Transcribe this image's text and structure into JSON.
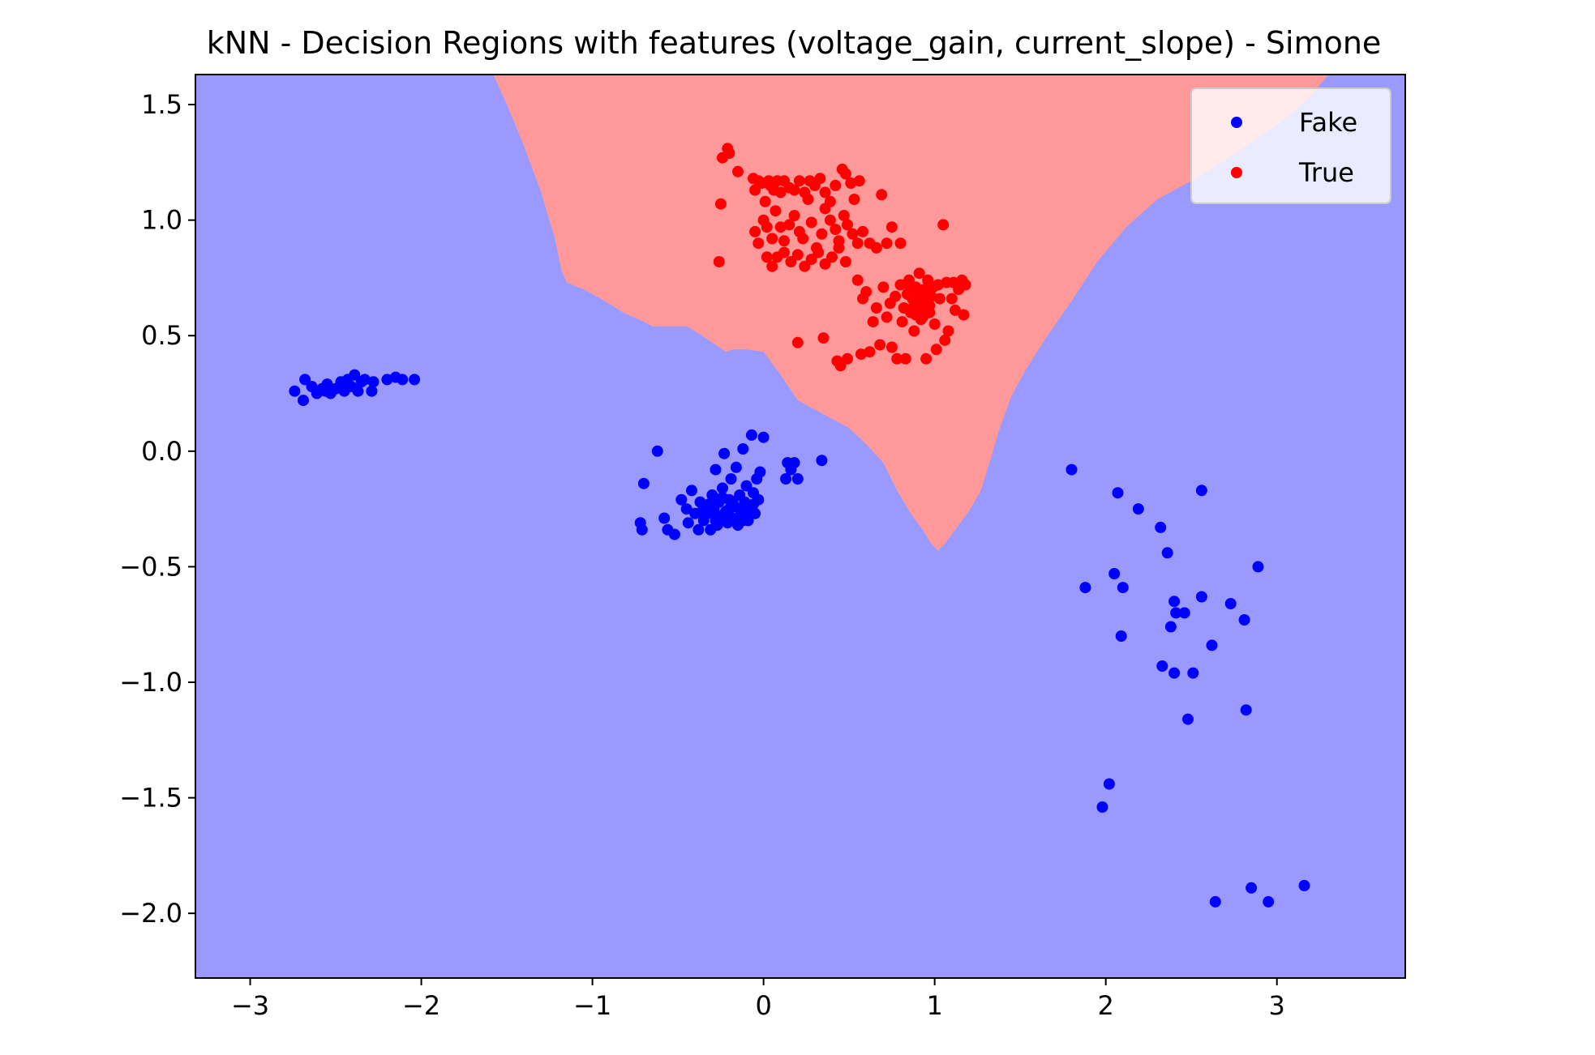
{
  "chart_data": {
    "type": "scatter",
    "title": "kNN - Decision Regions with features (voltage_gain, current_slope) - Simone",
    "xlabel": "",
    "ylabel": "",
    "xlim": [
      -3.32,
      3.75
    ],
    "ylim": [
      -2.28,
      1.63
    ],
    "xticks": [
      -3,
      -2,
      -1,
      0,
      1,
      2,
      3
    ],
    "yticks": [
      1.5,
      1.0,
      0.5,
      0.0,
      -0.5,
      -1.0,
      -1.5,
      -2.0
    ],
    "xtick_labels": [
      "−3",
      "−2",
      "−1",
      "0",
      "1",
      "2",
      "3"
    ],
    "ytick_labels": [
      "1.5",
      "1.0",
      "0.5",
      "0.0",
      "−0.5",
      "−1.0",
      "−1.5",
      "−2.0"
    ],
    "background_region": {
      "label": "Fake",
      "color": "#9999ff"
    },
    "decision_region_true": {
      "label": "True",
      "color": "#ff9999",
      "boundary": [
        [
          -1.58,
          1.63
        ],
        [
          -1.5,
          1.5
        ],
        [
          -1.4,
          1.32
        ],
        [
          -1.3,
          1.12
        ],
        [
          -1.22,
          0.92
        ],
        [
          -1.18,
          0.78
        ],
        [
          -1.15,
          0.73
        ],
        [
          -1.05,
          0.7
        ],
        [
          -0.95,
          0.66
        ],
        [
          -0.82,
          0.6
        ],
        [
          -0.7,
          0.56
        ],
        [
          -0.65,
          0.54
        ],
        [
          -0.45,
          0.54
        ],
        [
          -0.38,
          0.51
        ],
        [
          -0.3,
          0.47
        ],
        [
          -0.22,
          0.43
        ],
        [
          -0.18,
          0.44
        ],
        [
          -0.1,
          0.44
        ],
        [
          0.0,
          0.43
        ],
        [
          0.1,
          0.33
        ],
        [
          0.2,
          0.22
        ],
        [
          0.3,
          0.18
        ],
        [
          0.4,
          0.14
        ],
        [
          0.5,
          0.1
        ],
        [
          0.6,
          0.03
        ],
        [
          0.7,
          -0.05
        ],
        [
          0.78,
          -0.17
        ],
        [
          0.86,
          -0.27
        ],
        [
          0.93,
          -0.34
        ],
        [
          0.98,
          -0.4
        ],
        [
          1.02,
          -0.43
        ],
        [
          1.06,
          -0.4
        ],
        [
          1.12,
          -0.34
        ],
        [
          1.2,
          -0.26
        ],
        [
          1.27,
          -0.17
        ],
        [
          1.32,
          -0.05
        ],
        [
          1.38,
          0.1
        ],
        [
          1.45,
          0.24
        ],
        [
          1.53,
          0.35
        ],
        [
          1.65,
          0.49
        ],
        [
          1.8,
          0.65
        ],
        [
          1.95,
          0.82
        ],
        [
          2.12,
          0.97
        ],
        [
          2.3,
          1.09
        ],
        [
          2.5,
          1.17
        ],
        [
          2.7,
          1.26
        ],
        [
          2.9,
          1.36
        ],
        [
          3.05,
          1.44
        ],
        [
          3.2,
          1.54
        ],
        [
          3.3,
          1.63
        ]
      ]
    },
    "legend": {
      "location": "upper right",
      "entries": [
        {
          "label": "Fake",
          "color": "#0000ff"
        },
        {
          "label": "True",
          "color": "#ff0000"
        }
      ]
    },
    "series": [
      {
        "name": "Fake",
        "color": "#0000ff",
        "points": [
          [
            -2.74,
            0.26
          ],
          [
            -2.69,
            0.22
          ],
          [
            -2.68,
            0.31
          ],
          [
            -2.64,
            0.28
          ],
          [
            -2.61,
            0.25
          ],
          [
            -2.58,
            0.27
          ],
          [
            -2.55,
            0.29
          ],
          [
            -2.53,
            0.25
          ],
          [
            -2.5,
            0.27
          ],
          [
            -2.47,
            0.3
          ],
          [
            -2.45,
            0.26
          ],
          [
            -2.43,
            0.31
          ],
          [
            -2.41,
            0.28
          ],
          [
            -2.39,
            0.33
          ],
          [
            -2.37,
            0.26
          ],
          [
            -2.35,
            0.3
          ],
          [
            -2.33,
            0.31
          ],
          [
            -2.29,
            0.26
          ],
          [
            -2.28,
            0.3
          ],
          [
            -2.2,
            0.31
          ],
          [
            -2.15,
            0.32
          ],
          [
            -2.11,
            0.31
          ],
          [
            -2.04,
            0.31
          ],
          [
            -2.46,
            0.29
          ],
          [
            -2.56,
            0.26
          ],
          [
            -0.72,
            -0.31
          ],
          [
            -0.71,
            -0.34
          ],
          [
            -0.7,
            -0.14
          ],
          [
            -0.62,
            -0.0
          ],
          [
            -0.58,
            -0.29
          ],
          [
            -0.56,
            -0.34
          ],
          [
            -0.52,
            -0.36
          ],
          [
            -0.48,
            -0.21
          ],
          [
            -0.45,
            -0.25
          ],
          [
            -0.44,
            -0.31
          ],
          [
            -0.42,
            -0.17
          ],
          [
            -0.4,
            -0.27
          ],
          [
            -0.38,
            -0.34
          ],
          [
            -0.37,
            -0.22
          ],
          [
            -0.35,
            -0.3
          ],
          [
            -0.33,
            -0.27
          ],
          [
            -0.31,
            -0.34
          ],
          [
            -0.3,
            -0.19
          ],
          [
            -0.29,
            -0.25
          ],
          [
            -0.28,
            -0.08
          ],
          [
            -0.27,
            -0.32
          ],
          [
            -0.26,
            -0.22
          ],
          [
            -0.25,
            -0.28
          ],
          [
            -0.24,
            -0.16
          ],
          [
            -0.23,
            -0.01
          ],
          [
            -0.22,
            -0.26
          ],
          [
            -0.21,
            -0.31
          ],
          [
            -0.2,
            -0.21
          ],
          [
            -0.19,
            -0.12
          ],
          [
            -0.18,
            -0.29
          ],
          [
            -0.17,
            -0.24
          ],
          [
            -0.16,
            -0.07
          ],
          [
            -0.15,
            -0.32
          ],
          [
            -0.14,
            -0.19
          ],
          [
            -0.13,
            -0.27
          ],
          [
            -0.12,
            0.01
          ],
          [
            -0.11,
            -0.22
          ],
          [
            -0.1,
            -0.15
          ],
          [
            -0.09,
            -0.3
          ],
          [
            -0.08,
            -0.24
          ],
          [
            -0.07,
            0.07
          ],
          [
            -0.06,
            -0.18
          ],
          [
            -0.05,
            -0.27
          ],
          [
            -0.04,
            -0.12
          ],
          [
            -0.03,
            -0.21
          ],
          [
            -0.02,
            -0.09
          ],
          [
            0.0,
            0.06
          ],
          [
            0.13,
            -0.12
          ],
          [
            0.14,
            -0.05
          ],
          [
            0.16,
            -0.08
          ],
          [
            0.18,
            -0.05
          ],
          [
            0.2,
            -0.12
          ],
          [
            0.34,
            -0.04
          ],
          [
            -0.36,
            -0.26
          ],
          [
            -0.32,
            -0.23
          ],
          [
            -0.27,
            -0.28
          ],
          [
            -0.22,
            -0.3
          ],
          [
            -0.18,
            -0.22
          ],
          [
            -0.14,
            -0.25
          ],
          [
            -0.1,
            -0.27
          ],
          [
            -0.06,
            -0.23
          ],
          [
            -0.12,
            -0.3
          ],
          [
            -0.2,
            -0.25
          ],
          [
            -0.28,
            -0.3
          ],
          [
            -0.24,
            -0.2
          ],
          [
            1.8,
            -0.08
          ],
          [
            1.88,
            -0.59
          ],
          [
            2.05,
            -0.53
          ],
          [
            2.07,
            -0.18
          ],
          [
            2.09,
            -0.8
          ],
          [
            2.1,
            -0.59
          ],
          [
            2.19,
            -0.25
          ],
          [
            2.32,
            -0.33
          ],
          [
            2.33,
            -0.93
          ],
          [
            2.36,
            -0.44
          ],
          [
            2.38,
            -0.76
          ],
          [
            2.4,
            -0.65
          ],
          [
            2.4,
            -0.96
          ],
          [
            2.41,
            -0.7
          ],
          [
            2.46,
            -0.7
          ],
          [
            2.48,
            -1.16
          ],
          [
            2.51,
            -0.96
          ],
          [
            2.56,
            -0.17
          ],
          [
            2.56,
            -0.63
          ],
          [
            2.62,
            -0.84
          ],
          [
            2.73,
            -0.66
          ],
          [
            2.81,
            -0.73
          ],
          [
            2.82,
            -1.12
          ],
          [
            2.89,
            -0.5
          ],
          [
            2.02,
            -1.44
          ],
          [
            1.98,
            -1.54
          ],
          [
            2.64,
            -1.95
          ],
          [
            2.85,
            -1.89
          ],
          [
            2.95,
            -1.95
          ],
          [
            3.16,
            -1.88
          ]
        ]
      },
      {
        "name": "True",
        "color": "#ff0000",
        "points": [
          [
            -0.26,
            0.82
          ],
          [
            -0.25,
            1.07
          ],
          [
            -0.24,
            1.27
          ],
          [
            -0.21,
            1.31
          ],
          [
            -0.2,
            1.29
          ],
          [
            -0.15,
            1.21
          ],
          [
            -0.06,
            1.18
          ],
          [
            -0.05,
            1.13
          ],
          [
            -0.03,
            1.17
          ],
          [
            -0.01,
            1.16
          ],
          [
            0.01,
            1.08
          ],
          [
            0.03,
            1.17
          ],
          [
            0.04,
            1.15
          ],
          [
            0.06,
            1.13
          ],
          [
            0.08,
            1.17
          ],
          [
            0.1,
            1.12
          ],
          [
            0.12,
            1.17
          ],
          [
            0.15,
            1.14
          ],
          [
            0.18,
            1.13
          ],
          [
            0.21,
            1.17
          ],
          [
            0.24,
            1.12
          ],
          [
            0.27,
            1.17
          ],
          [
            0.3,
            1.15
          ],
          [
            0.33,
            1.18
          ],
          [
            0.36,
            1.12
          ],
          [
            0.39,
            1.08
          ],
          [
            0.42,
            1.15
          ],
          [
            0.46,
            1.22
          ],
          [
            0.48,
            1.2
          ],
          [
            0.51,
            1.16
          ],
          [
            0.53,
            1.09
          ],
          [
            0.56,
            1.17
          ],
          [
            0.69,
            1.11
          ],
          [
            -0.05,
            0.95
          ],
          [
            -0.03,
            0.9
          ],
          [
            0.0,
            1.0
          ],
          [
            0.02,
            0.97
          ],
          [
            0.05,
            0.92
          ],
          [
            0.07,
            1.04
          ],
          [
            0.1,
            0.97
          ],
          [
            0.12,
            0.91
          ],
          [
            0.15,
            0.98
          ],
          [
            0.18,
            1.02
          ],
          [
            0.21,
            0.95
          ],
          [
            0.23,
            0.92
          ],
          [
            0.26,
            1.09
          ],
          [
            0.28,
            0.99
          ],
          [
            0.31,
            0.88
          ],
          [
            0.34,
            0.94
          ],
          [
            0.36,
            1.05
          ],
          [
            0.39,
            1.0
          ],
          [
            0.42,
            0.96
          ],
          [
            0.44,
            0.91
          ],
          [
            0.47,
            1.02
          ],
          [
            0.49,
            0.98
          ],
          [
            0.52,
            0.94
          ],
          [
            0.55,
            0.9
          ],
          [
            0.58,
            0.95
          ],
          [
            0.62,
            0.9
          ],
          [
            0.66,
            0.88
          ],
          [
            0.72,
            0.9
          ],
          [
            0.75,
            0.97
          ],
          [
            0.8,
            0.9
          ],
          [
            0.02,
            0.84
          ],
          [
            0.05,
            0.8
          ],
          [
            0.08,
            0.84
          ],
          [
            0.12,
            0.86
          ],
          [
            0.16,
            0.82
          ],
          [
            0.2,
            0.85
          ],
          [
            0.24,
            0.8
          ],
          [
            0.28,
            0.83
          ],
          [
            0.32,
            0.86
          ],
          [
            0.36,
            0.81
          ],
          [
            0.4,
            0.84
          ],
          [
            0.44,
            0.88
          ],
          [
            0.48,
            0.82
          ],
          [
            0.2,
            0.47
          ],
          [
            0.35,
            0.49
          ],
          [
            0.43,
            0.39
          ],
          [
            0.45,
            0.37
          ],
          [
            0.49,
            0.4
          ],
          [
            0.55,
            0.74
          ],
          [
            0.57,
            0.42
          ],
          [
            0.58,
            0.66
          ],
          [
            0.6,
            0.69
          ],
          [
            0.62,
            0.43
          ],
          [
            0.64,
            0.56
          ],
          [
            0.66,
            0.62
          ],
          [
            0.68,
            0.46
          ],
          [
            0.7,
            0.71
          ],
          [
            0.72,
            0.58
          ],
          [
            0.74,
            0.64
          ],
          [
            0.75,
            0.45
          ],
          [
            0.77,
            0.67
          ],
          [
            0.78,
            0.4
          ],
          [
            0.8,
            0.72
          ],
          [
            0.81,
            0.56
          ],
          [
            0.82,
            0.62
          ],
          [
            0.83,
            0.4
          ],
          [
            0.84,
            0.68
          ],
          [
            0.85,
            0.74
          ],
          [
            0.86,
            0.6
          ],
          [
            0.87,
            0.66
          ],
          [
            0.88,
            0.52
          ],
          [
            0.89,
            0.71
          ],
          [
            0.9,
            0.63
          ],
          [
            0.91,
            0.77
          ],
          [
            0.92,
            0.57
          ],
          [
            0.93,
            0.69
          ],
          [
            0.94,
            0.64
          ],
          [
            0.95,
            0.4
          ],
          [
            0.96,
            0.74
          ],
          [
            0.97,
            0.6
          ],
          [
            0.98,
            0.67
          ],
          [
            0.99,
            0.71
          ],
          [
            1.0,
            0.55
          ],
          [
            1.01,
            0.44
          ],
          [
            1.02,
            0.72
          ],
          [
            1.03,
            0.66
          ],
          [
            1.05,
            0.98
          ],
          [
            1.06,
            0.48
          ],
          [
            1.07,
            0.73
          ],
          [
            1.08,
            0.52
          ],
          [
            1.1,
            0.66
          ],
          [
            1.11,
            0.73
          ],
          [
            1.12,
            0.61
          ],
          [
            1.14,
            0.7
          ],
          [
            1.16,
            0.74
          ],
          [
            1.18,
            0.72
          ],
          [
            1.17,
            0.59
          ],
          [
            0.88,
            0.63
          ],
          [
            0.92,
            0.62
          ],
          [
            0.89,
            0.59
          ],
          [
            0.94,
            0.7
          ],
          [
            0.91,
            0.67
          ],
          [
            0.86,
            0.71
          ],
          [
            0.97,
            0.63
          ],
          [
            0.93,
            0.58
          ],
          [
            0.95,
            0.65
          ],
          [
            0.9,
            0.7
          ]
        ]
      }
    ]
  }
}
